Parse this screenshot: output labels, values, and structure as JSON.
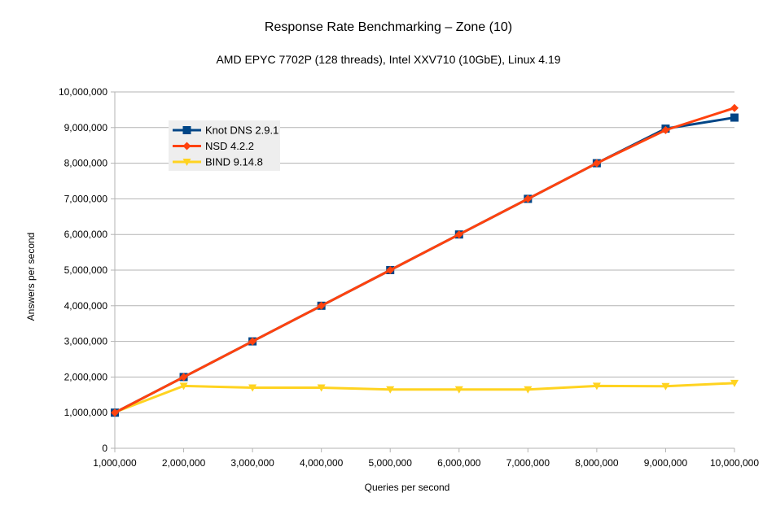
{
  "chart_data": {
    "type": "line",
    "title": "Response Rate Benchmarking – Zone (10)",
    "subtitle": "AMD EPYC 7702P (128 threads), Intel XXV710 (10GbE), Linux 4.19",
    "xlabel": "Queries per second",
    "ylabel": "Answers per second",
    "x": [
      1000000,
      2000000,
      3000000,
      4000000,
      5000000,
      6000000,
      7000000,
      8000000,
      9000000,
      10000000
    ],
    "x_tick_labels": [
      "1,000,000",
      "2,000,000",
      "3,000,000",
      "4,000,000",
      "5,000,000",
      "6,000,000",
      "7,000,000",
      "8,000,000",
      "9,000,000",
      "10,000,000"
    ],
    "xlim": [
      1000000,
      10000000
    ],
    "ylim": [
      0,
      10000000
    ],
    "y_ticks": [
      0,
      1000000,
      2000000,
      3000000,
      4000000,
      5000000,
      6000000,
      7000000,
      8000000,
      9000000,
      10000000
    ],
    "y_tick_labels": [
      "0",
      "1,000,000",
      "2,000,000",
      "3,000,000",
      "4,000,000",
      "5,000,000",
      "6,000,000",
      "7,000,000",
      "8,000,000",
      "9,000,000",
      "10,000,000"
    ],
    "grid": "horizontal",
    "legend_position": "top-left",
    "series": [
      {
        "name": "BIND 9.14.8",
        "color": "#ffd320",
        "marker": "triangle-down",
        "values": [
          1010000,
          1750000,
          1700000,
          1700000,
          1650000,
          1650000,
          1650000,
          1750000,
          1740000,
          1830000
        ]
      },
      {
        "name": "Knot DNS 2.9.1",
        "color": "#004586",
        "marker": "square",
        "values": [
          1000000,
          2000000,
          3000000,
          4000000,
          5000000,
          6000000,
          7000000,
          8000000,
          8970000,
          9280000
        ]
      },
      {
        "name": "NSD 4.2.2",
        "color": "#ff420e",
        "marker": "diamond",
        "values": [
          1000000,
          2000000,
          3000000,
          4000000,
          5000000,
          6000000,
          7000000,
          8000000,
          8930000,
          9550000
        ]
      }
    ],
    "legend_order": [
      "Knot DNS 2.9.1",
      "NSD 4.2.2",
      "BIND 9.14.8"
    ]
  }
}
